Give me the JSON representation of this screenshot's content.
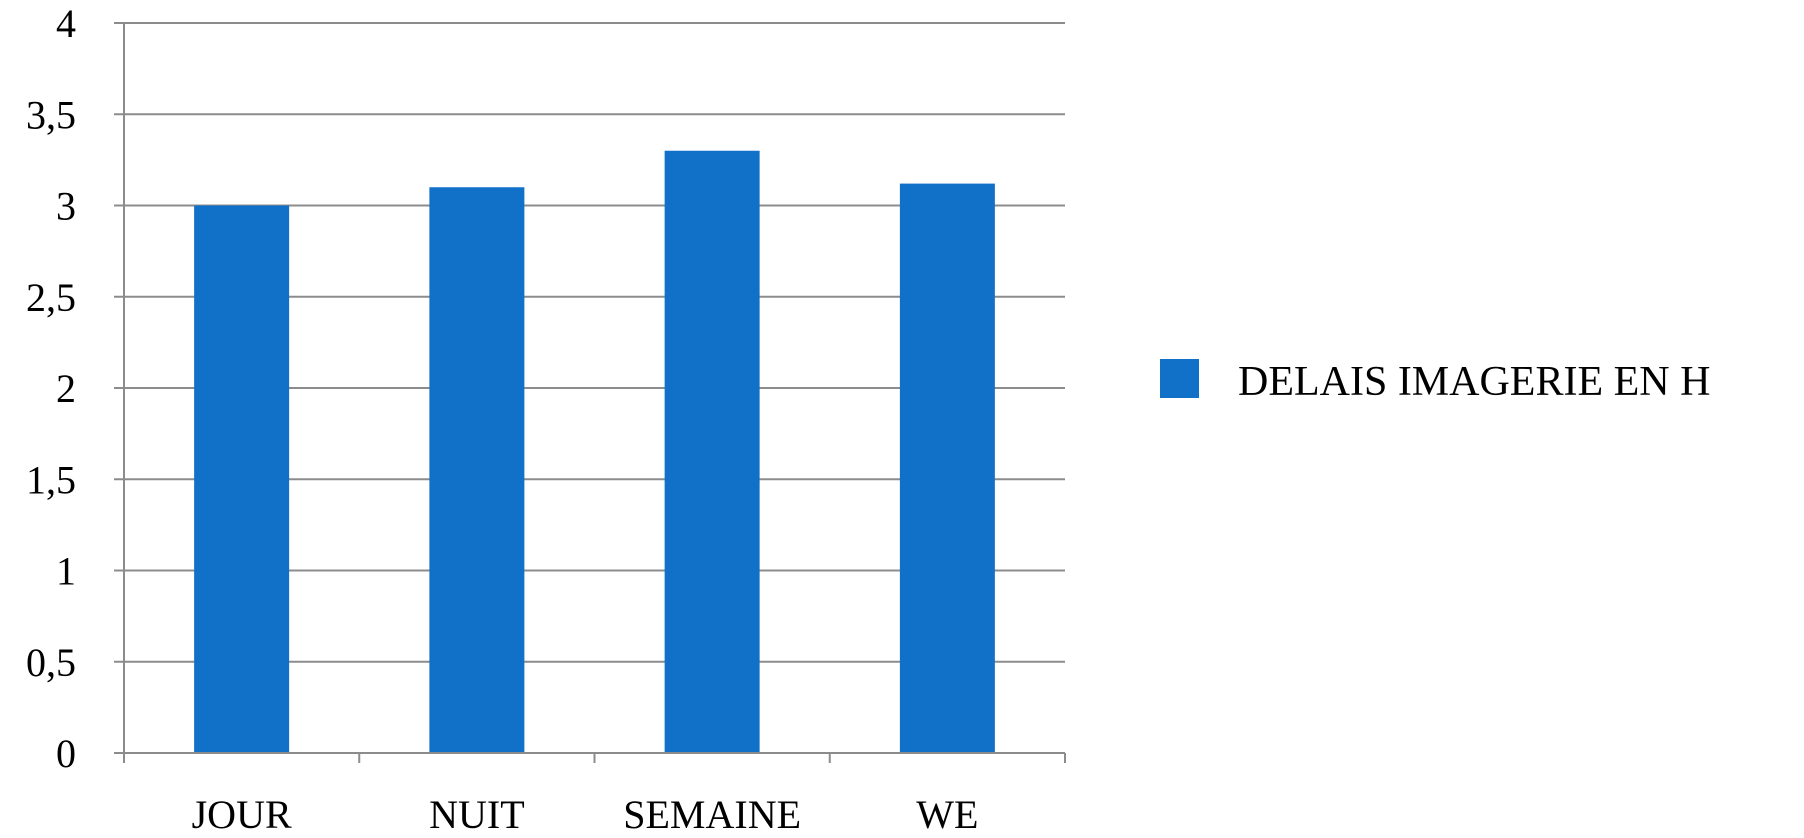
{
  "chart_data": {
    "type": "bar",
    "title": "",
    "xlabel": "",
    "ylabel": "",
    "categories": [
      "JOUR",
      "NUIT",
      "SEMAINE",
      "WE"
    ],
    "series": [
      {
        "name": "DELAIS IMAGERIE EN H",
        "values": [
          3.0,
          3.1,
          3.3,
          3.12
        ],
        "color": "#1170C8"
      }
    ],
    "ylim": [
      0,
      4
    ],
    "y_ticks": [
      "0",
      "0,5",
      "1",
      "1,5",
      "2",
      "2,5",
      "3",
      "3,5",
      "4"
    ],
    "grid": true,
    "legend_position": "right"
  }
}
